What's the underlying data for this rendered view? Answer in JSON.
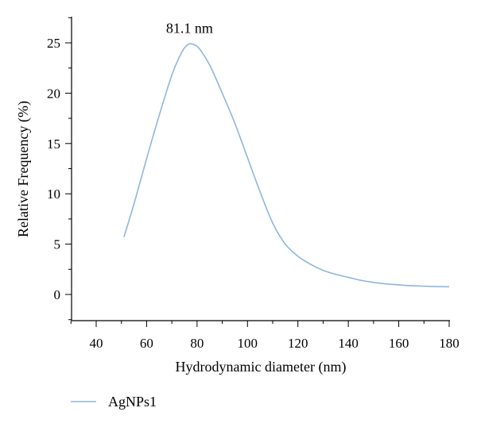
{
  "chart_data": {
    "type": "line",
    "xlabel": "Hydrodynamic diameter (nm)",
    "ylabel": "Relative Frequency (%)",
    "xlim": [
      30,
      180
    ],
    "ylim": [
      -2.5,
      27.5
    ],
    "x_ticks": [
      40,
      60,
      80,
      100,
      120,
      140,
      160,
      180
    ],
    "y_ticks": [
      0,
      5,
      10,
      15,
      20,
      25
    ],
    "grid": false,
    "legend_position": "bottom-left",
    "annotations": [
      {
        "text": "81.1 nm",
        "x": 77,
        "y": 24.9
      }
    ],
    "series": [
      {
        "name": "AgNPs1",
        "color": "#8fb6e0",
        "x": [
          51,
          55,
          60,
          65,
          70,
          73,
          75,
          77,
          79,
          81,
          85,
          90,
          95,
          100,
          105,
          110,
          115,
          120,
          125,
          130,
          135,
          140,
          145,
          150,
          155,
          160,
          165,
          170,
          175,
          180
        ],
        "y": [
          5.7,
          9.0,
          13.5,
          17.8,
          21.8,
          23.6,
          24.5,
          24.9,
          24.8,
          24.4,
          22.8,
          20.0,
          17.0,
          13.6,
          10.2,
          7.1,
          5.0,
          3.8,
          3.0,
          2.4,
          2.0,
          1.7,
          1.4,
          1.2,
          1.05,
          0.95,
          0.87,
          0.82,
          0.78,
          0.76
        ]
      }
    ]
  }
}
